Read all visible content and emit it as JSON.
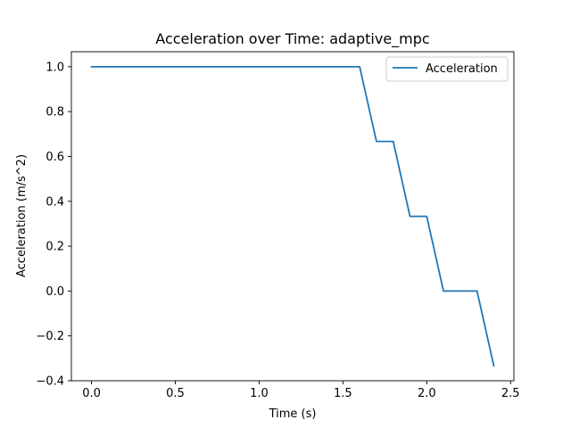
{
  "chart_data": {
    "type": "line",
    "title": "Acceleration over Time: adaptive_mpc",
    "xlabel": "Time (s)",
    "ylabel": "Acceleration (m/s^2)",
    "xlim": [
      -0.12,
      2.52
    ],
    "ylim": [
      -0.4,
      1.067
    ],
    "xticks": [
      0.0,
      0.5,
      1.0,
      1.5,
      2.0,
      2.5
    ],
    "xtick_labels": [
      "0.0",
      "0.5",
      "1.0",
      "1.5",
      "2.0",
      "2.5"
    ],
    "yticks": [
      -0.4,
      -0.2,
      0.0,
      0.2,
      0.4,
      0.6,
      0.8,
      1.0
    ],
    "ytick_labels": [
      "−0.4",
      "−0.2",
      "0.0",
      "0.2",
      "0.4",
      "0.6",
      "0.8",
      "1.0"
    ],
    "grid": false,
    "legend_position": "top-right",
    "series": [
      {
        "name": "Acceleration",
        "color": "#1f77b4",
        "x": [
          0.0,
          0.1,
          0.2,
          0.3,
          0.4,
          0.5,
          0.6,
          0.7,
          0.8,
          0.9,
          1.0,
          1.1,
          1.2,
          1.3,
          1.4,
          1.5,
          1.6,
          1.7,
          1.8,
          1.9,
          2.0,
          2.1,
          2.2,
          2.3,
          2.4
        ],
        "y": [
          1.0,
          1.0,
          1.0,
          1.0,
          1.0,
          1.0,
          1.0,
          1.0,
          1.0,
          1.0,
          1.0,
          1.0,
          1.0,
          1.0,
          1.0,
          1.0,
          1.0,
          0.667,
          0.667,
          0.333,
          0.333,
          0.0,
          0.0,
          0.0,
          -0.333
        ]
      }
    ]
  }
}
